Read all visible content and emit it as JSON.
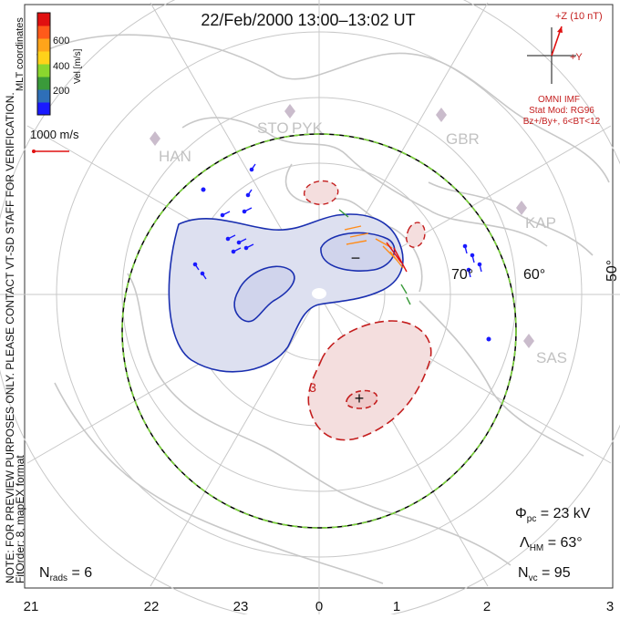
{
  "header": {
    "title": "22/Feb/2000 13:00–13:02 UT"
  },
  "colorbar": {
    "label": "Vel [m/s]",
    "ticks": [
      "600",
      "400",
      "200"
    ],
    "colors": [
      "#1a1aff",
      "#2e6fb8",
      "#3a9a3a",
      "#8ad62e",
      "#ffd21a",
      "#ffa41a",
      "#ff5a1a",
      "#e01010"
    ]
  },
  "coords_label": "MLT coordinates",
  "vector_scale": "1000 m/s",
  "imf": {
    "z_label": "+Z (10 nT)",
    "y_label": "+Y",
    "lines": [
      "OMNI IMF",
      "Stat Mod: RG96",
      "Bz+/By+, 6<BT<12"
    ]
  },
  "stations": [
    "HAN",
    "STO",
    "PYK",
    "GBR",
    "KAP",
    "SAS"
  ],
  "latitudes": [
    "70°",
    "60°",
    "50°"
  ],
  "side_note": {
    "line1": "NOTE: FOR PREVIEW PURPOSES ONLY. PLEASE CONTACT VT-SD STAFF FOR VERIFICATION.",
    "line2": "FitOrder: 8, mapEX format"
  },
  "stats": {
    "phi_main": "Φ",
    "phi_sub": "pc",
    "phi_value": " = 23 kV",
    "lam_main": "Λ",
    "lam_sub": "HM",
    "lam_value": " = 63°",
    "nvc_main": "N",
    "nvc_sub": "vc",
    "nvc_value": " = 95",
    "nrads_main": "N",
    "nrads_sub": "rads",
    "nrads_value": " = 6"
  },
  "cell_markers": {
    "min": "−",
    "max": "+",
    "contour_label": "3"
  },
  "mlt_axis": [
    "21",
    "22",
    "23",
    "0",
    "1",
    "2",
    "3"
  ],
  "colors": {
    "negative_cell": "#1a2fb0",
    "negative_fill": "#dde0f0",
    "positive_cell": "#c41e1e",
    "positive_fill": "#f4dede",
    "hm_boundary_dash": "#7ad23a",
    "land": "#c8c8c8",
    "grid": "#c8c8c8"
  }
}
